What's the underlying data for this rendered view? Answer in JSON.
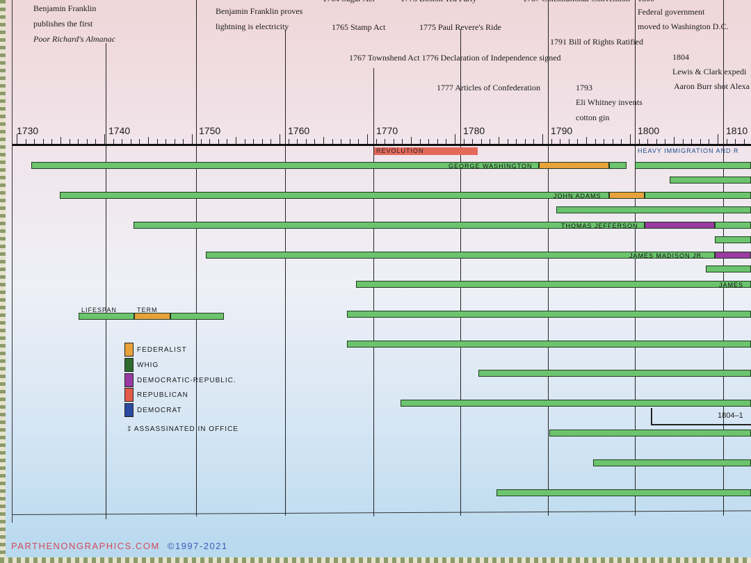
{
  "timeline": {
    "years": [
      "1730",
      "1740",
      "1750",
      "1760",
      "1770",
      "1780",
      "1790",
      "1800",
      "1810"
    ],
    "events": {
      "franklin_almanac_1": "Benjamin Franklin",
      "franklin_almanac_2": "publishes the first",
      "franklin_almanac_3": "Poor Richard's Almanac",
      "franklin_lightning_1": "Benjamin Franklin proves",
      "franklin_lightning_2": "lightning is electricity",
      "stamp_act": "1765  Stamp Act",
      "paul_revere": "1775  Paul Revere's Ride",
      "townshend_declaration": "1767  Townshend Act 1776  Declaration of Independence signed",
      "articles": "1777 Articles of Confederation",
      "bill_of_rights": "1791  Bill of Rights Ratified",
      "cotton_gin_1": "1793",
      "cotton_gin_2": "Eli Whitney invents",
      "cotton_gin_3": "cotton gin",
      "federal_dc_1": "Federal government",
      "federal_dc_2": "moved to Washington D.C.",
      "lewis_clark_1": "1804",
      "lewis_clark_2": "Lewis & Clark expedi",
      "lewis_clark_3": "Aaron Burr shot Alexa",
      "partial_top_1": "1764 Sugar Act",
      "partial_top_2": "1773 Boston Tea Party",
      "partial_top_3": "1787 Constitutional Convention",
      "partial_top_4": "1800"
    },
    "eras": {
      "revolution": "Revolution",
      "immigration": "Heavy Immigration and R"
    }
  },
  "presidents": [
    {
      "name": "George Washington",
      "party": "Federalist"
    },
    {
      "name": "John Adams",
      "party": "Federalist"
    },
    {
      "name": "Thomas Jefferson",
      "party": "Democratic-Republic."
    },
    {
      "name": "James Madison Jr.",
      "party": "Democratic-Republic."
    },
    {
      "name": "James",
      "party": ""
    }
  ],
  "legend": {
    "lifespan": "Lifespan",
    "term": "Term",
    "parties": [
      {
        "label": "Federalist",
        "color": "#e8a23a"
      },
      {
        "label": "Whig",
        "color": "#2f6b2f"
      },
      {
        "label": "Democratic-Republic.",
        "color": "#9a3aa2"
      },
      {
        "label": "Republican",
        "color": "#e35a4a"
      },
      {
        "label": "Democrat",
        "color": "#2a4aa0"
      }
    ],
    "assassinated": "‡ Assassinated in office"
  },
  "bracket_label": "1804–1",
  "footer": {
    "brand": "ParthenonGraphics.com",
    "copyright": "©1997-2021"
  },
  "colors": {
    "lifespan_green": "#6cc46e",
    "federalist_orange": "#e8a23a",
    "dem_rep_purple": "#9a3aa2",
    "revolution_red": "#e36a5a"
  }
}
